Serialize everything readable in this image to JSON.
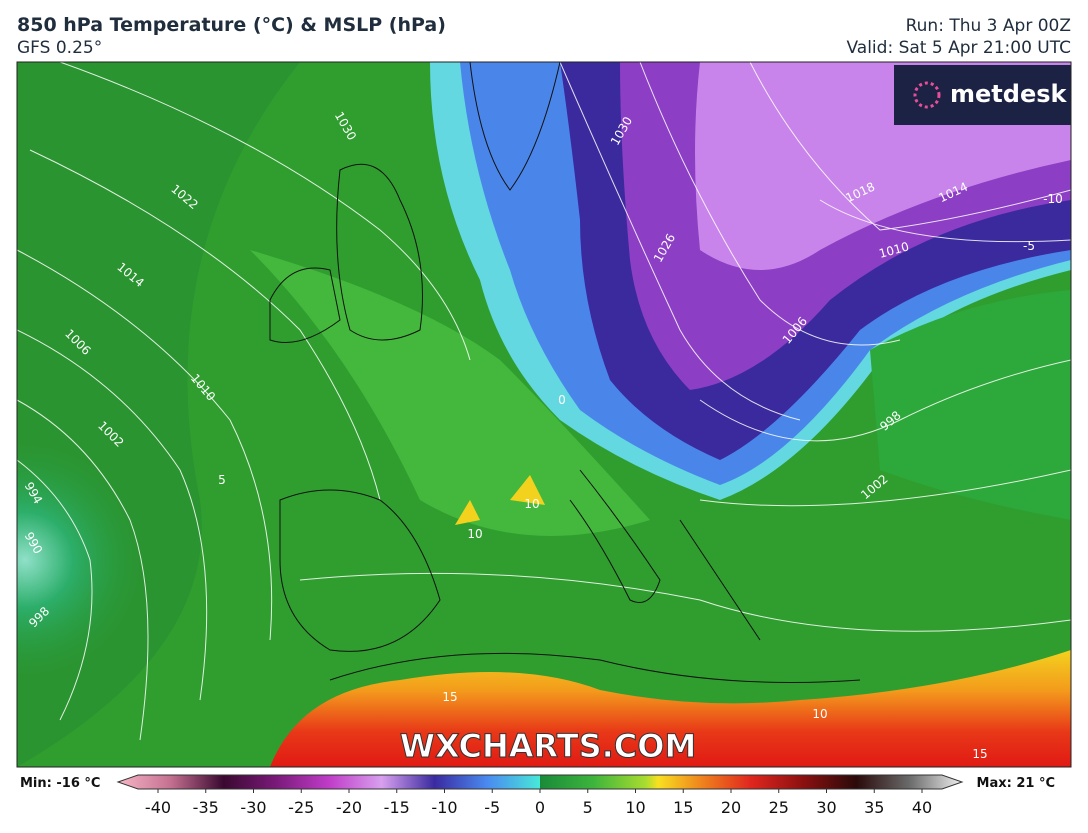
{
  "header": {
    "title": "850 hPa Temperature (°C) & MSLP (hPa)",
    "model": "GFS 0.25°",
    "run": "Run: Thu 3 Apr 00Z",
    "valid": "Valid: Sat 5 Apr 21:00 UTC"
  },
  "logo": "metdesk",
  "watermark": "WXCHARTS.COM",
  "isobar_labels": [
    "1030",
    "1022",
    "1014",
    "1006",
    "1010",
    "1002",
    "994",
    "990",
    "998",
    "1030",
    "1026",
    "1018",
    "1014",
    "1010",
    "1006",
    "998",
    "1002",
    "10",
    "10",
    "15",
    "10",
    "15",
    "5",
    "0",
    "-5",
    "-10"
  ],
  "colorbar": {
    "min_label": "Min: -16 °C",
    "max_label": "Max: 21 °C",
    "lim": [
      -40,
      40
    ],
    "ticks": [
      -40,
      -35,
      -30,
      -25,
      -20,
      -15,
      -10,
      -5,
      0,
      5,
      10,
      15,
      20,
      25,
      30,
      35,
      40
    ]
  }
}
